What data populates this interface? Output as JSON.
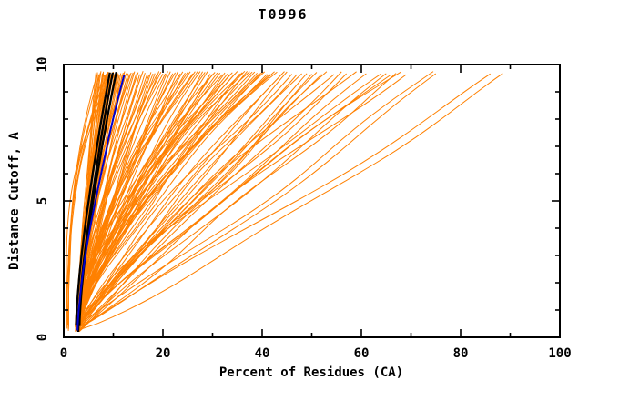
{
  "chart_data": {
    "type": "line",
    "title": "T0996",
    "xlabel": "Percent of Residues (CA)",
    "ylabel": "Distance Cutoff, A",
    "xlim": [
      0,
      100
    ],
    "ylim": [
      0,
      10
    ],
    "x_major_ticks": [
      0,
      20,
      40,
      60,
      80,
      100
    ],
    "x_minor_ticks": [
      10,
      30,
      50,
      70,
      90
    ],
    "y_major_ticks": [
      0,
      5,
      10
    ],
    "y_minor_ticks": [
      1,
      2,
      3,
      4,
      6,
      7,
      8,
      9
    ],
    "grid": false,
    "legend": "none",
    "colors": {
      "background": "#ffffff",
      "axis": "#000000",
      "predictions": "#ff8000",
      "best_models": "#000000",
      "reference": "#0000cc"
    },
    "curve_start": {
      "x_min": 2.3,
      "x_max": 3.2,
      "y_min": 0.2,
      "y_max": 0.45
    },
    "curve_top_y": 9.7,
    "series": [
      {
        "name": "predictions",
        "color": "#ff8000",
        "width": 1,
        "shape": "fan",
        "top_x": [
          6.5,
          6.8,
          7.0,
          7.2,
          7.5,
          7.8,
          8.0,
          8.0,
          8.2,
          8.4,
          8.6,
          8.8,
          9.0,
          9.2,
          9.4,
          9.6,
          9.8,
          10.0,
          10.2,
          10.5,
          10.8,
          11.0,
          11.2,
          11.5,
          11.8,
          12.0,
          12.3,
          12.6,
          13.0,
          13.3,
          13.6,
          14.0,
          14.3,
          14.6,
          15.0,
          15.3,
          15.7,
          16.0,
          16.4,
          16.8,
          17.2,
          17.6,
          18.0,
          18.4,
          18.8,
          19.2,
          19.6,
          20.0,
          20.5,
          21.0,
          21.5,
          22.0,
          22.5,
          23.0,
          23.5,
          24.0,
          24.5,
          25.0,
          25.5,
          26.0,
          26.5,
          27.0,
          27.5,
          28.0,
          28.5,
          29.0,
          29.5,
          30.0,
          30.5,
          31.0,
          31.5,
          32.0,
          32.5,
          33.0,
          33.5,
          34.0,
          34.5,
          35.0,
          35.5,
          36.0,
          36.5,
          37.0,
          37.5,
          38.0,
          38.5,
          39.0,
          39.5,
          40.0,
          40.5,
          41.0,
          41.5,
          42.0,
          42.5,
          43.0,
          44.0,
          44.5,
          45.0,
          46.0,
          47.0,
          48.0,
          49.0,
          50.0,
          51.0,
          52.0,
          53.0,
          54.5,
          56.0,
          57.0,
          59.0,
          61.0,
          64.0,
          65.0,
          66.0,
          67.0,
          68.0,
          69.0,
          74.5,
          75.0,
          86.0,
          88.5
        ]
      },
      {
        "name": "predictions-steep",
        "color": "#ff8000",
        "width": 1,
        "shape": "steep",
        "top_x": [
          6.8,
          7.4,
          8.1,
          8.9,
          9.7,
          10.4
        ]
      },
      {
        "name": "best-models",
        "color": "#000000",
        "width": 2.3,
        "shape": "smooth",
        "top_x": [
          9.3,
          9.9,
          10.6
        ]
      },
      {
        "name": "reference-model",
        "color": "#0000cc",
        "width": 2,
        "shape": "smooth",
        "top_x": [
          12.2
        ]
      }
    ]
  }
}
